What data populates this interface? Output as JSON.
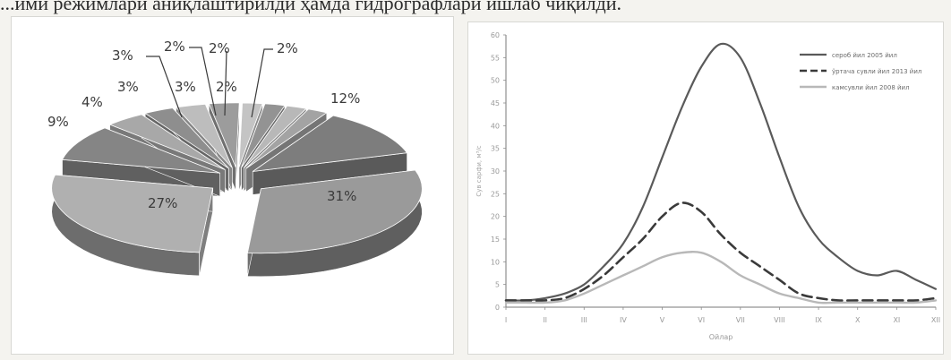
{
  "header": {
    "text": "...ими режимлари аниқлаштирилди ҳамда гидрографлари ишлаб чиқилди."
  },
  "chart_data": [
    {
      "type": "pie",
      "style": "exploded-3d",
      "slices": [
        {
          "label": "31%",
          "value": 31,
          "color": "#9a9a9a"
        },
        {
          "label": "27%",
          "value": 27,
          "color": "#b0b0b0"
        },
        {
          "label": "9%",
          "value": 9,
          "color": "#858585"
        },
        {
          "label": "4%",
          "value": 4,
          "color": "#a8a8a8"
        },
        {
          "label": "3%",
          "value": 3,
          "color": "#8e8e8e"
        },
        {
          "label": "3%",
          "value": 3,
          "color": "#bdbdbd"
        },
        {
          "label": "3%",
          "value": 3,
          "color": "#9c9c9c"
        },
        {
          "label": "2%",
          "value": 2,
          "color": "#c4c4c4"
        },
        {
          "label": "2%",
          "value": 2,
          "color": "#939393"
        },
        {
          "label": "2%",
          "value": 2,
          "color": "#b8b8b8"
        },
        {
          "label": "2%",
          "value": 2,
          "color": "#a3a3a3"
        },
        {
          "label": "12%",
          "value": 12,
          "color": "#7d7d7d"
        }
      ]
    },
    {
      "type": "line",
      "x_ticks": [
        "I",
        "II",
        "III",
        "IV",
        "V",
        "VI",
        "VII",
        "VIII",
        "IX",
        "X",
        "XI",
        "XII"
      ],
      "xlabel": "Ойлар",
      "ylabel": "Сув сарфи, м³/с",
      "y_ticks": [
        "0",
        "5",
        "10",
        "15",
        "20",
        "25",
        "30",
        "35",
        "40",
        "45",
        "50",
        "55",
        "60"
      ],
      "ylim": [
        0,
        60
      ],
      "legend_position": "top-right",
      "series": [
        {
          "name": "сероб йил 2005 йил",
          "style": "solid",
          "color": "#5a5a5a",
          "x": [
            1,
            1.5,
            2,
            2.5,
            3,
            3.5,
            4,
            4.5,
            5,
            5.5,
            6,
            6.5,
            7,
            7.5,
            8,
            8.5,
            9,
            9.5,
            10,
            10.5,
            11,
            11.5,
            12
          ],
          "y": [
            1.5,
            1.5,
            2,
            3,
            5,
            9,
            14,
            22,
            33,
            44,
            53,
            58,
            55,
            45,
            33,
            22,
            15,
            11,
            8,
            7,
            8,
            6,
            4
          ]
        },
        {
          "name": "ўртача сувли йил 2013 йил",
          "style": "dashed",
          "color": "#3a3a3a",
          "x": [
            1,
            1.5,
            2,
            2.5,
            3,
            3.5,
            4,
            4.5,
            5,
            5.5,
            6,
            6.5,
            7,
            7.5,
            8,
            8.5,
            9,
            9.5,
            10,
            10.5,
            11,
            11.5,
            12
          ],
          "y": [
            1.5,
            1.5,
            1.5,
            2,
            4,
            7,
            11,
            15,
            20,
            23,
            21,
            16,
            12,
            9,
            6,
            3,
            2,
            1.5,
            1.5,
            1.5,
            1.5,
            1.5,
            2
          ]
        },
        {
          "name": "камсувли йил 2008 йил",
          "style": "solid-light",
          "color": "#b8b8b8",
          "x": [
            1,
            1.5,
            2,
            2.5,
            3,
            3.5,
            4,
            4.5,
            5,
            5.5,
            6,
            6.5,
            7,
            7.5,
            8,
            8.5,
            9,
            9.5,
            10,
            10.5,
            11,
            11.5,
            12
          ],
          "y": [
            1,
            1,
            1,
            1.5,
            3,
            5,
            7,
            9,
            11,
            12,
            12,
            10,
            7,
            5,
            3,
            2,
            1,
            1,
            1,
            1,
            1,
            1,
            1.5
          ]
        }
      ]
    }
  ]
}
